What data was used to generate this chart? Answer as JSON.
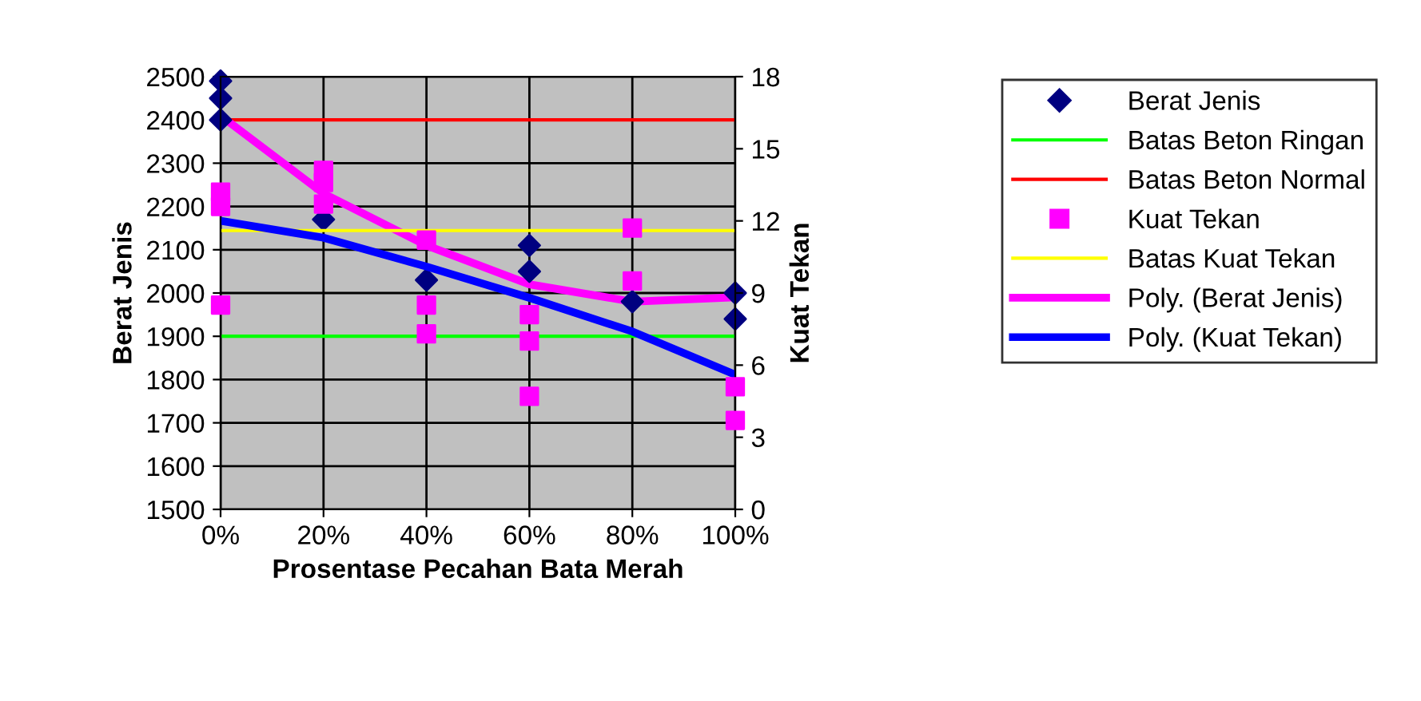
{
  "chart_data": {
    "type": "scatter",
    "xlabel": "Prosentase Pecahan Bata Merah",
    "ylabel": "Berat Jenis",
    "y2label": "Kuat Tekan",
    "xlim": [
      0,
      100
    ],
    "xticks": [
      {
        "value": 0,
        "label": "0%"
      },
      {
        "value": 20,
        "label": "20%"
      },
      {
        "value": 40,
        "label": "40%"
      },
      {
        "value": 60,
        "label": "60%"
      },
      {
        "value": 80,
        "label": "80%"
      },
      {
        "value": 100,
        "label": "100%"
      }
    ],
    "ylim": [
      1500,
      2500
    ],
    "yticks": [
      1500,
      1600,
      1700,
      1800,
      1900,
      2000,
      2100,
      2200,
      2300,
      2400,
      2500
    ],
    "y2lim": [
      0,
      18
    ],
    "y2ticks": [
      0,
      3,
      6,
      9,
      12,
      15,
      18
    ],
    "grid": true,
    "legend": "right",
    "series": [
      {
        "name": "Berat Jenis",
        "marker": "diamond",
        "color": "#000080",
        "x": [
          0,
          0,
          0,
          20,
          40,
          60,
          60,
          80,
          100,
          100
        ],
        "values": [
          2490,
          2450,
          2400,
          2170,
          2030,
          2110,
          2050,
          1980,
          2000,
          1940
        ]
      },
      {
        "name": "Batas Beton Ringan",
        "type": "line",
        "color": "#00ff00",
        "x": [
          0,
          100
        ],
        "values": [
          1900,
          1900
        ]
      },
      {
        "name": "Batas Beton Normal",
        "type": "line",
        "color": "#ff0000",
        "x": [
          0,
          100
        ],
        "values": [
          2400,
          2400
        ]
      },
      {
        "name": "Kuat Tekan",
        "marker": "square",
        "axis": "y2",
        "color": "#ff00ff",
        "x": [
          0,
          0,
          0,
          20,
          20,
          20,
          40,
          40,
          40,
          60,
          60,
          60,
          80,
          80,
          100,
          100
        ],
        "values": [
          13.2,
          12.6,
          8.5,
          14.1,
          13.6,
          12.7,
          11.2,
          8.5,
          7.3,
          8.1,
          7.0,
          4.7,
          11.7,
          9.5,
          5.1,
          3.7
        ]
      },
      {
        "name": "Batas Kuat Tekan",
        "type": "line",
        "axis": "y2",
        "color": "#ffff00",
        "x": [
          0,
          100
        ],
        "values": [
          11.6,
          11.6
        ]
      },
      {
        "name": "Poly. (Berat Jenis)",
        "type": "line",
        "color": "#ff00ff",
        "x": [
          0,
          20,
          40,
          60,
          80,
          100
        ],
        "values": [
          2410,
          2230,
          2110,
          2020,
          1980,
          1990
        ]
      },
      {
        "name": "Poly. (Kuat Tekan)",
        "type": "line",
        "axis": "y2",
        "color": "#0000ff",
        "x": [
          0,
          20,
          40,
          60,
          80,
          100
        ],
        "values": [
          12.0,
          11.3,
          10.1,
          8.8,
          7.4,
          5.6
        ]
      }
    ]
  }
}
